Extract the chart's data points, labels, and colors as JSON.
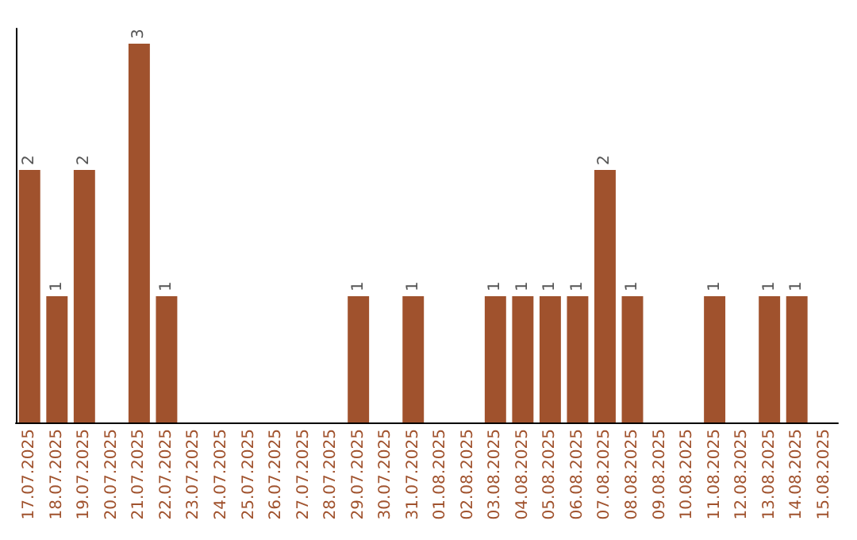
{
  "chart_data": {
    "type": "bar",
    "categories": [
      "17.07.2025",
      "18.07.2025",
      "19.07.2025",
      "20.07.2025",
      "21.07.2025",
      "22.07.2025",
      "23.07.2025",
      "24.07.2025",
      "25.07.2025",
      "26.07.2025",
      "27.07.2025",
      "28.07.2025",
      "29.07.2025",
      "30.07.2025",
      "31.07.2025",
      "01.08.2025",
      "02.08.2025",
      "03.08.2025",
      "04.08.2025",
      "05.08.2025",
      "06.08.2025",
      "07.08.2025",
      "08.08.2025",
      "09.08.2025",
      "10.08.2025",
      "11.08.2025",
      "12.08.2025",
      "13.08.2025",
      "14.08.2025",
      "15.08.2025"
    ],
    "values": [
      2,
      1,
      2,
      0,
      3,
      1,
      0,
      0,
      0,
      0,
      0,
      0,
      1,
      0,
      1,
      0,
      0,
      1,
      1,
      1,
      1,
      2,
      1,
      0,
      0,
      1,
      0,
      1,
      1,
      0
    ],
    "value_labels": [
      "2",
      "1",
      "2",
      null,
      "3",
      "1",
      null,
      null,
      null,
      null,
      null,
      null,
      "1",
      null,
      "1",
      null,
      null,
      "1",
      "1",
      "1",
      "1",
      "2",
      "1",
      null,
      null,
      "1",
      null,
      "1",
      "1",
      null
    ],
    "color": "#a0522d"
  }
}
